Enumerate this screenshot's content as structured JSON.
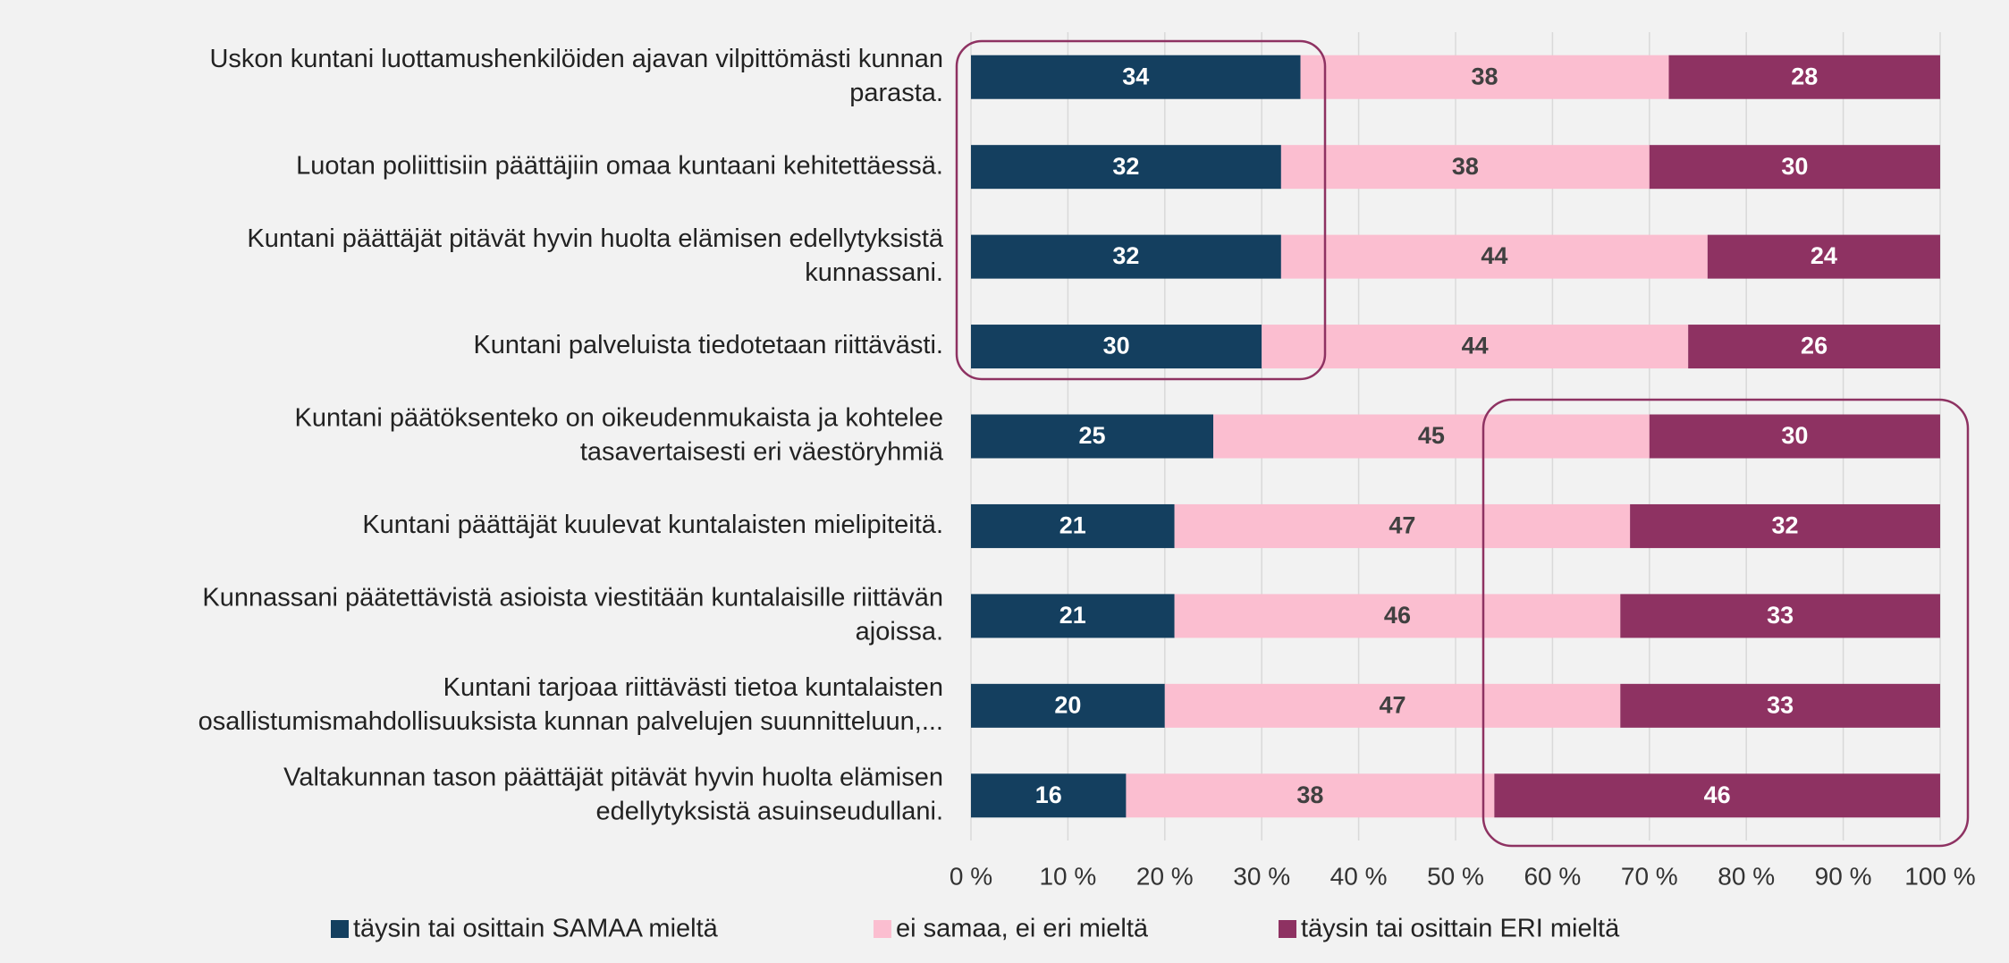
{
  "chart_data": {
    "type": "stacked_bar_horizontal",
    "categories": [
      [
        "Uskon kuntani luottamushenkilöiden ajavan vilpittömästi kunnan",
        "parasta."
      ],
      [
        "Luotan poliittisiin päättäjiin omaa kuntaani kehitettäessä."
      ],
      [
        "Kuntani päättäjät pitävät hyvin huolta elämisen edellytyksistä",
        "kunnassani."
      ],
      [
        "Kuntani palveluista tiedotetaan riittävästi."
      ],
      [
        "Kuntani päätöksenteko on oikeudenmukaista ja kohtelee",
        "tasavertaisesti eri väestöryhmiä"
      ],
      [
        "Kuntani päättäjät kuulevat kuntalaisten mielipiteitä."
      ],
      [
        "Kunnassani päätettävistä asioista viestitään kuntalaisille riittävän",
        "ajoissa."
      ],
      [
        "Kuntani tarjoaa riittävästi tietoa kuntalaisten",
        "osallistumismahdollisuuksista kunnan palvelujen suunnitteluun,..."
      ],
      [
        "Valtakunnan tason päättäjät pitävät hyvin huolta elämisen",
        "edellytyksistä asuinseudullani."
      ]
    ],
    "series": [
      {
        "name": "täysin tai osittain SAMAA mieltä",
        "color": "#143f5f",
        "label_color": "#ffffff",
        "values": [
          34,
          32,
          32,
          30,
          25,
          21,
          21,
          20,
          16
        ]
      },
      {
        "name": "ei samaa, ei eri mieltä",
        "color": "#fbbed0",
        "label_color": "#404040",
        "values": [
          38,
          38,
          44,
          44,
          45,
          47,
          46,
          47,
          38
        ]
      },
      {
        "name": "täysin tai osittain ERI mieltä",
        "color": "#8e3262",
        "label_color": "#ffffff",
        "values": [
          28,
          30,
          24,
          26,
          30,
          32,
          33,
          33,
          46
        ]
      }
    ],
    "xlim": [
      0,
      100
    ],
    "xticks": [
      {
        "value": 0,
        "label": "0 %"
      },
      {
        "value": 10,
        "label": "10 %"
      },
      {
        "value": 20,
        "label": "20 %"
      },
      {
        "value": 30,
        "label": "30 %"
      },
      {
        "value": 40,
        "label": "40 %"
      },
      {
        "value": 50,
        "label": "50 %"
      },
      {
        "value": 60,
        "label": "60 %"
      },
      {
        "value": 70,
        "label": "70 %"
      },
      {
        "value": 80,
        "label": "80 %"
      },
      {
        "value": 90,
        "label": "90 %"
      },
      {
        "value": 100,
        "label": "100 %"
      }
    ],
    "grid": true,
    "legend": "bottom"
  }
}
